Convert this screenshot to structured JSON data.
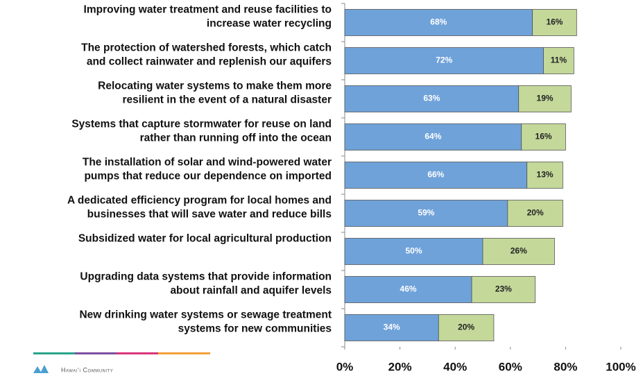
{
  "chart_data": {
    "type": "stacked-bar-horizontal",
    "categories": [
      [
        "Improving water treatment and reuse facilities to",
        "increase water recycling"
      ],
      [
        "The protection of watershed forests, which catch",
        "and collect rainwater and replenish our aquifers"
      ],
      [
        "Relocating water systems to make them more",
        "resilient in the event of a natural disaster"
      ],
      [
        "Systems that capture stormwater for reuse on land",
        "rather than running off into the ocean"
      ],
      [
        "The installation of solar and wind-powered water",
        "pumps that reduce our dependence on imported"
      ],
      [
        "A dedicated efficiency program for local homes and",
        "businesses that will save water and reduce bills"
      ],
      [
        "Subsidized water for local agricultural production"
      ],
      [
        "Upgrading data systems that provide information",
        "about rainfall and aquifer levels"
      ],
      [
        "New drinking water systems or sewage treatment",
        "systems for new communities"
      ]
    ],
    "series": [
      {
        "color": "#6fa2d9",
        "values": [
          68,
          72,
          63,
          64,
          66,
          59,
          50,
          46,
          34
        ],
        "value_labels": [
          "68%",
          "72%",
          "63%",
          "64%",
          "66%",
          "59%",
          "50%",
          "46%",
          "34%"
        ]
      },
      {
        "color": "#c4d89a",
        "values": [
          16,
          11,
          19,
          16,
          13,
          20,
          26,
          23,
          20
        ],
        "value_labels": [
          "16%",
          "11%",
          "19%",
          "16%",
          "13%",
          "20%",
          "26%",
          "23%",
          "20%"
        ]
      }
    ],
    "xlim": [
      0,
      100
    ],
    "xticks": [
      {
        "value": 0,
        "label": "0%"
      },
      {
        "value": 20,
        "label": "20%"
      },
      {
        "value": 40,
        "label": "40%"
      },
      {
        "value": 60,
        "label": "60%"
      },
      {
        "value": 80,
        "label": "80%"
      },
      {
        "value": 100,
        "label": "100%"
      }
    ],
    "footer": "Hawaiʻi Community"
  }
}
